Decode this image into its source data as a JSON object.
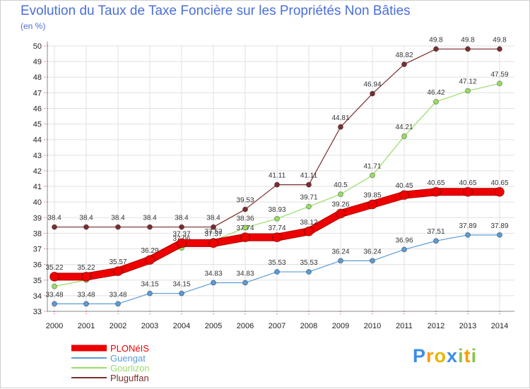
{
  "title": "Evolution du Taux de Taxe Foncière sur les Propriétés Non Bâties",
  "subtitle": "(en %)",
  "logo_text": "Proxiti",
  "colors": {
    "title": "#4a6fd8",
    "grid": "#e0e0e0",
    "axis": "#888888"
  },
  "chart_data": {
    "type": "line",
    "x": [
      "2000",
      "2001",
      "2002",
      "2003",
      "2004",
      "2005",
      "2006",
      "2007",
      "2008",
      "2009",
      "2010",
      "2011",
      "2012",
      "2013",
      "2014"
    ],
    "ylim": [
      33,
      50
    ],
    "yticks": [
      33,
      34,
      35,
      36,
      37,
      38,
      39,
      40,
      41,
      42,
      43,
      44,
      45,
      46,
      47,
      48,
      49,
      50
    ],
    "grid": true,
    "legend_position": "bottom-left",
    "series": [
      {
        "name": "PLONéIS",
        "color": "#ee0000",
        "width": 9,
        "values": [
          35.22,
          35.22,
          35.57,
          36.29,
          37.37,
          37.37,
          37.74,
          37.74,
          38.12,
          39.26,
          39.85,
          40.45,
          40.65,
          40.65,
          40.65
        ],
        "labels": [
          "35.22",
          "35.22",
          "35.57",
          "36.29",
          "37.37",
          "37.37",
          "37.74",
          "37.74",
          "38.12",
          "39.26",
          "39.85",
          "40.45",
          "40.65",
          "40.65",
          "40.65"
        ]
      },
      {
        "name": "Guengat",
        "color": "#5b9bd5",
        "width": 1.2,
        "values": [
          33.48,
          33.48,
          33.48,
          34.15,
          34.15,
          34.83,
          34.83,
          35.53,
          35.53,
          36.24,
          36.24,
          36.96,
          37.51,
          37.89,
          37.89
        ],
        "labels": [
          "33.48",
          "33.48",
          "33.48",
          "34.15",
          "34.15",
          "34.83",
          "34.83",
          "35.53",
          "35.53",
          "36.24",
          "36.24",
          "36.96",
          "37.51",
          "37.89",
          "37.89"
        ]
      },
      {
        "name": "Gourlizon",
        "color": "#99dd66",
        "width": 1.2,
        "values": [
          34.6,
          35.0,
          35.6,
          36.3,
          37.06,
          37.52,
          38.36,
          38.93,
          39.71,
          40.5,
          41.71,
          44.21,
          46.42,
          47.12,
          47.59
        ],
        "labels": [
          "34.6",
          "35.0",
          "35.6",
          "36.3",
          "37.06",
          "37.52",
          "38.36",
          "38.93",
          "39.71",
          "40.5",
          "41.71",
          "44.21",
          "46.42",
          "47.12",
          "47.59"
        ],
        "shown_labels": [
          false,
          false,
          false,
          false,
          true,
          true,
          true,
          true,
          true,
          true,
          true,
          true,
          true,
          true,
          true
        ]
      },
      {
        "name": "Pluguffan",
        "color": "#7a2e2e",
        "width": 1.2,
        "values": [
          38.4,
          38.4,
          38.4,
          38.4,
          38.4,
          38.4,
          39.53,
          41.11,
          41.11,
          44.81,
          46.94,
          48.82,
          49.8,
          49.8,
          49.8
        ],
        "labels": [
          "38.4",
          "38.4",
          "38.4",
          "38.4",
          "38.4",
          "38.4",
          "39.53",
          "41.11",
          "41.11",
          "44.81",
          "46.94",
          "48.82",
          "49.8",
          "49.8",
          "49.8"
        ]
      }
    ]
  }
}
